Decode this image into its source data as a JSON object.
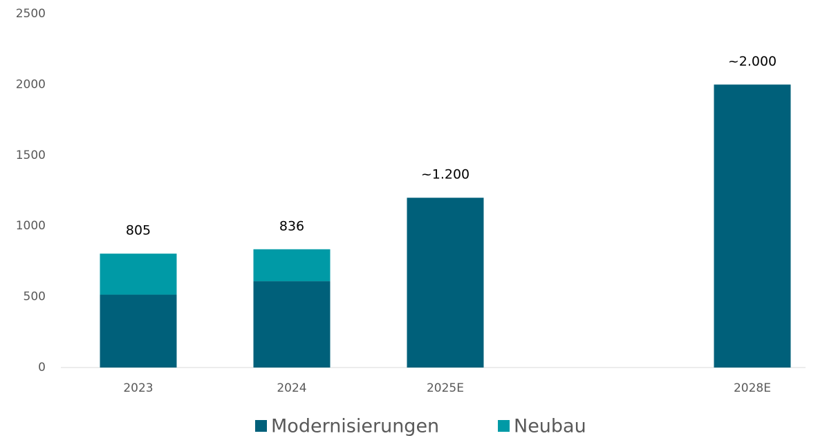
{
  "chart_data": {
    "type": "stacked_bar",
    "categories": [
      "2023",
      "2024",
      "2025E",
      null,
      "2028E"
    ],
    "series": [
      {
        "name": "Modernisierungen",
        "color": "#00607a",
        "values": [
          515,
          610,
          1200,
          null,
          2000
        ]
      },
      {
        "name": "Neubau",
        "color": "#009aa6",
        "values": [
          290,
          226,
          null,
          null,
          null
        ]
      }
    ],
    "totals": {
      "values": [
        805,
        836,
        1200,
        null,
        2000
      ],
      "value_labels": [
        "805",
        "836",
        "~1.200",
        null,
        "~2.000"
      ]
    },
    "ylim": [
      0,
      2500
    ],
    "yticks": [
      0,
      500,
      1000,
      1500,
      2000,
      2500
    ],
    "grid": false,
    "legend": "bottom"
  }
}
